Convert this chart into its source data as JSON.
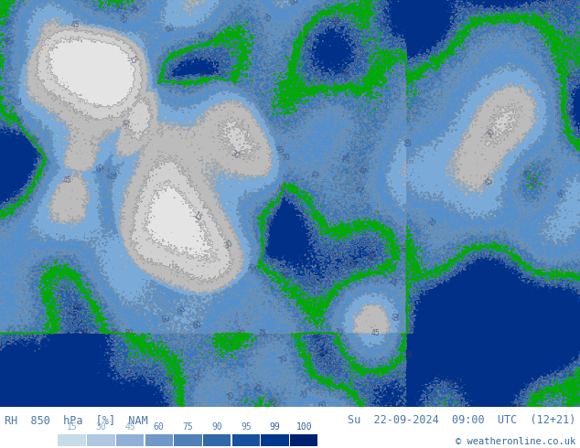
{
  "title_left": "RH  850  hPa  [%]  NAM",
  "title_right": "Su  22-09-2024  09:00  UTC  (12+21)",
  "copyright": "© weatheronline.co.uk",
  "legend_values": [
    15,
    30,
    45,
    60,
    75,
    90,
    95,
    99,
    100
  ],
  "legend_colors_fill": [
    "#c8dce8",
    "#b0c8e0",
    "#90b0d8",
    "#7098c8",
    "#5080b8",
    "#3068a8",
    "#1850a0",
    "#003890",
    "#002070"
  ],
  "legend_text_colors": [
    "#8ab0c8",
    "#8ab0c8",
    "#8ab0c8",
    "#5080b0",
    "#5080b0",
    "#5080b0",
    "#5080b0",
    "#3060a0",
    "#3060a0"
  ],
  "map_colors": [
    "#dce8f0",
    "#c0d4ec",
    "#a0c0e4",
    "#7aaad8",
    "#5590cc",
    "#3878bc",
    "#2060ac",
    "#10489c",
    "#003088"
  ],
  "levels": [
    0,
    15,
    30,
    45,
    60,
    75,
    90,
    95,
    99,
    101
  ],
  "figsize": [
    6.34,
    4.9
  ],
  "dpi": 100,
  "bottom_bar_color": "white",
  "text_color": "#4878a8",
  "copyright_color": "#336699",
  "map_facecolor": "#a8c4e0",
  "seed": 42
}
